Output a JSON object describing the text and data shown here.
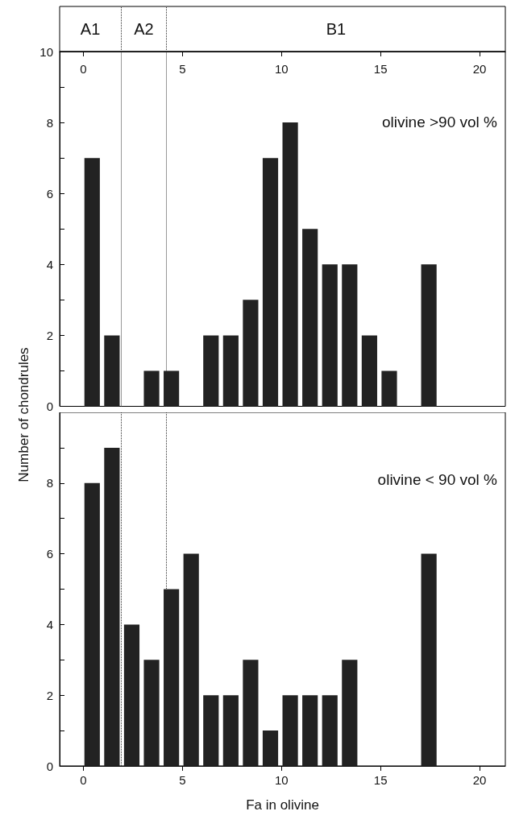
{
  "chart_data": [
    {
      "type": "histogram",
      "bins": [
        0,
        1,
        2,
        3,
        4,
        5,
        6,
        7,
        8,
        9,
        10,
        11,
        12,
        13,
        14,
        15,
        16,
        17,
        18
      ],
      "values": [
        7,
        2,
        0,
        1,
        1,
        0,
        2,
        2,
        3,
        7,
        8,
        5,
        4,
        4,
        2,
        1,
        0,
        4
      ],
      "color": "#222222",
      "xlim": [
        -1.2,
        21.3
      ],
      "xticks": [
        0,
        5,
        10,
        15,
        20
      ],
      "grid": false,
      "ylim": [
        0,
        10
      ],
      "yticks": [
        0,
        {
          "value": 1,
          "label": null
        },
        2,
        {
          "value": 3,
          "label": null
        },
        4,
        {
          "value": 5,
          "label": null
        },
        6,
        {
          "value": 7,
          "label": null
        },
        8,
        {
          "value": 9,
          "label": null
        },
        10
      ],
      "annotations": [
        "olivine >90 vol %",
        "A1",
        "A2",
        "B1"
      ],
      "ref_lines": [
        {
          "axis": "x",
          "value": 1.9,
          "label": null,
          "line_style": "dotted"
        },
        {
          "axis": "x",
          "value": 4.2,
          "label": null,
          "line_style": "dotted"
        }
      ]
    },
    {
      "type": "histogram",
      "bins": [
        0,
        1,
        2,
        3,
        4,
        5,
        6,
        7,
        8,
        9,
        10,
        11,
        12,
        13,
        14,
        15,
        16,
        17,
        18
      ],
      "values": [
        8,
        9,
        4,
        3,
        5,
        6,
        2,
        2,
        3,
        1,
        2,
        2,
        2,
        3,
        0,
        0,
        0,
        6
      ],
      "color": "#222222",
      "xlim": [
        -1.2,
        21.3
      ],
      "xticks": [
        0,
        5,
        10,
        15,
        20
      ],
      "ylim": [
        0,
        10
      ],
      "yticks": [
        0,
        {
          "value": 1,
          "label": null
        },
        2,
        {
          "value": 3,
          "label": null
        },
        4,
        {
          "value": 5,
          "label": null
        },
        6,
        {
          "value": 7,
          "label": null
        },
        8,
        {
          "value": 9,
          "label": null
        }
      ],
      "xlabel": "Fa in olivine",
      "ylabel": "Number of chondrules",
      "grid": false,
      "annotations": [
        "olivine < 90 vol %"
      ],
      "ref_lines": [
        {
          "axis": "x",
          "value": 1.9,
          "label": null,
          "line_style": "dotted"
        },
        {
          "axis": "x",
          "value": 4.2,
          "label": null,
          "line_style": "dotted"
        }
      ]
    }
  ]
}
